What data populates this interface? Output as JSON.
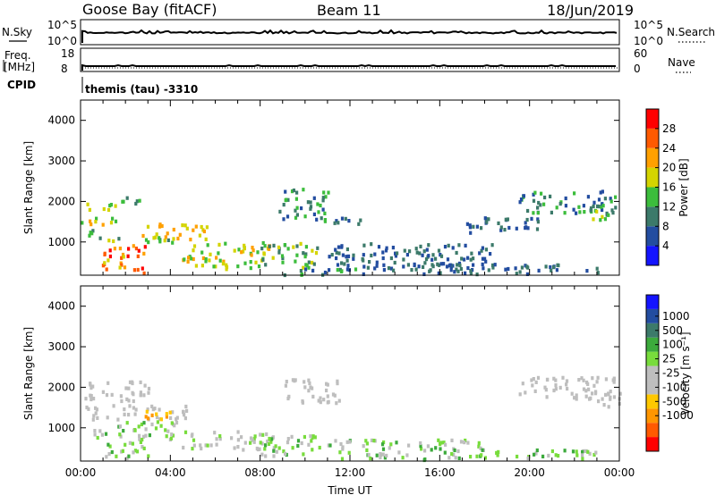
{
  "header": {
    "station": "Goose Bay (fitACF)",
    "beam": "Beam 11",
    "date": "18/Jun/2019"
  },
  "strips": {
    "nsky_label": "N.Sky",
    "nsky_ticks": [
      "10^5",
      "10^0"
    ],
    "nsearch_label": "N.Search",
    "nsearch_ticks": [
      "10^5",
      "10^0"
    ],
    "freq_label_1": "Freq.",
    "freq_label_2": "[MHz]",
    "freq_ticks": [
      "18",
      "8"
    ],
    "nave_label": "Nave",
    "nave_ticks": [
      "60",
      "0"
    ],
    "cpid_label": "CPID",
    "cpid_value": "themis (tau) -3310"
  },
  "chart_data": [
    {
      "type": "heatmap",
      "name": "power",
      "ylabel": "Slant Range [km]",
      "ylim": [
        180,
        4500
      ],
      "xlim": [
        0,
        24
      ],
      "yticks": [
        1000,
        2000,
        3000,
        4000
      ],
      "colorbar": {
        "label": "Power [dB]",
        "ticks": [
          "28",
          "24",
          "20",
          "16",
          "12",
          "8",
          "4"
        ],
        "colors": [
          "#1414ff",
          "#234da0",
          "#3c7a6a",
          "#3cbd3c",
          "#d4d400",
          "#ffa000",
          "#ff5a00",
          "#ff0000"
        ],
        "range": [
          0,
          32
        ]
      },
      "regions": [
        {
          "t0": 0.0,
          "t1": 1.5,
          "r0": 1750,
          "r1": 1950,
          "v0": 12,
          "v1": 20
        },
        {
          "t0": 1.5,
          "t1": 2.6,
          "r0": 1900,
          "r1": 2150,
          "v0": 8,
          "v1": 16
        },
        {
          "t0": 0.0,
          "t1": 1.6,
          "r0": 1400,
          "r1": 1650,
          "v0": 12,
          "v1": 24
        },
        {
          "t0": 0.0,
          "t1": 0.8,
          "r0": 1100,
          "r1": 1350,
          "v0": 8,
          "v1": 16
        },
        {
          "t0": 0.5,
          "t1": 4.2,
          "r0": 950,
          "r1": 1100,
          "v0": 8,
          "v1": 20
        },
        {
          "t0": 1.0,
          "t1": 3.2,
          "r0": 600,
          "r1": 950,
          "v0": 16,
          "v1": 32
        },
        {
          "t0": 0.6,
          "t1": 2.2,
          "r0": 300,
          "r1": 550,
          "v0": 16,
          "v1": 28
        },
        {
          "t0": 2.0,
          "t1": 3.0,
          "r0": 220,
          "r1": 420,
          "v0": 24,
          "v1": 32
        },
        {
          "t0": 2.6,
          "t1": 5.6,
          "r0": 1050,
          "r1": 1450,
          "v0": 16,
          "v1": 24
        },
        {
          "t0": 4.5,
          "t1": 8.4,
          "r0": 500,
          "r1": 1000,
          "v0": 12,
          "v1": 24
        },
        {
          "t0": 5.0,
          "t1": 8.0,
          "r0": 300,
          "r1": 500,
          "v0": 12,
          "v1": 20
        },
        {
          "t0": 8.0,
          "t1": 10.5,
          "r0": 350,
          "r1": 1000,
          "v0": 8,
          "v1": 20
        },
        {
          "t0": 8.8,
          "t1": 11.0,
          "r0": 1500,
          "r1": 2300,
          "v0": 4,
          "v1": 16
        },
        {
          "t0": 9.0,
          "t1": 12.5,
          "r0": 180,
          "r1": 350,
          "v0": 4,
          "v1": 16
        },
        {
          "t0": 11.0,
          "t1": 12.5,
          "r0": 1400,
          "r1": 1650,
          "v0": 4,
          "v1": 12
        },
        {
          "t0": 11.0,
          "t1": 18.5,
          "r0": 300,
          "r1": 950,
          "v0": 4,
          "v1": 12
        },
        {
          "t0": 17.0,
          "t1": 20.5,
          "r0": 1200,
          "r1": 1600,
          "v0": 4,
          "v1": 12
        },
        {
          "t0": 19.5,
          "t1": 23.9,
          "r0": 1700,
          "r1": 2250,
          "v0": 4,
          "v1": 16
        },
        {
          "t0": 22.5,
          "t1": 24.0,
          "r0": 1500,
          "r1": 1900,
          "v0": 8,
          "v1": 20
        },
        {
          "t0": 12.5,
          "t1": 23.0,
          "r0": 200,
          "r1": 450,
          "v0": 4,
          "v1": 12
        }
      ]
    },
    {
      "type": "heatmap",
      "name": "velocity",
      "ylabel": "Slant Range [km]",
      "xlabel": "Time UT",
      "ylim": [
        180,
        4500
      ],
      "xlim": [
        0,
        24
      ],
      "yticks": [
        1000,
        2000,
        3000,
        4000
      ],
      "xticks": [
        "00:00",
        "04:00",
        "08:00",
        "12:00",
        "16:00",
        "20:00",
        "00:00"
      ],
      "colorbar": {
        "label": "Velocity [m s⁻¹]",
        "ticks": [
          "1000",
          "500",
          "100",
          "25",
          "-25",
          "-100",
          "-500",
          "-1000"
        ],
        "colors": [
          "#ff0000",
          "#ff5a00",
          "#ff9600",
          "#ffc800",
          "#bebebe",
          "#bebebe",
          "#78dc3c",
          "#3caa3c",
          "#3c7a6a",
          "#234da0",
          "#1414ff"
        ]
      },
      "regions": [
        {
          "t0": 0.0,
          "t1": 3.0,
          "r0": 1650,
          "r1": 2150,
          "v0": 4,
          "v1": 5
        },
        {
          "t0": 0.0,
          "t1": 4.8,
          "r0": 1200,
          "r1": 1550,
          "v0": 4,
          "v1": 5
        },
        {
          "t0": 2.8,
          "t1": 4.8,
          "r0": 1200,
          "r1": 1400,
          "v0": 2,
          "v1": 3
        },
        {
          "t0": 0.5,
          "t1": 4.5,
          "r0": 700,
          "r1": 1150,
          "v0": 4,
          "v1": 7
        },
        {
          "t0": 1.0,
          "t1": 3.0,
          "r0": 200,
          "r1": 650,
          "v0": 5,
          "v1": 7
        },
        {
          "t0": 4.5,
          "t1": 9.0,
          "r0": 450,
          "r1": 900,
          "v0": 4,
          "v1": 6
        },
        {
          "t0": 8.0,
          "t1": 11.0,
          "r0": 300,
          "r1": 800,
          "v0": 4,
          "v1": 7
        },
        {
          "t0": 9.0,
          "t1": 11.5,
          "r0": 1600,
          "r1": 2200,
          "v0": 4,
          "v1": 5
        },
        {
          "t0": 11.0,
          "t1": 18.0,
          "r0": 200,
          "r1": 700,
          "v0": 4,
          "v1": 7
        },
        {
          "t0": 18.0,
          "t1": 23.0,
          "r0": 200,
          "r1": 450,
          "v0": 5,
          "v1": 7
        },
        {
          "t0": 19.5,
          "t1": 23.9,
          "r0": 1700,
          "r1": 2250,
          "v0": 4,
          "v1": 5
        },
        {
          "t0": 22.5,
          "t1": 24.0,
          "r0": 1500,
          "r1": 1900,
          "v0": 4,
          "v1": 5
        }
      ]
    }
  ]
}
